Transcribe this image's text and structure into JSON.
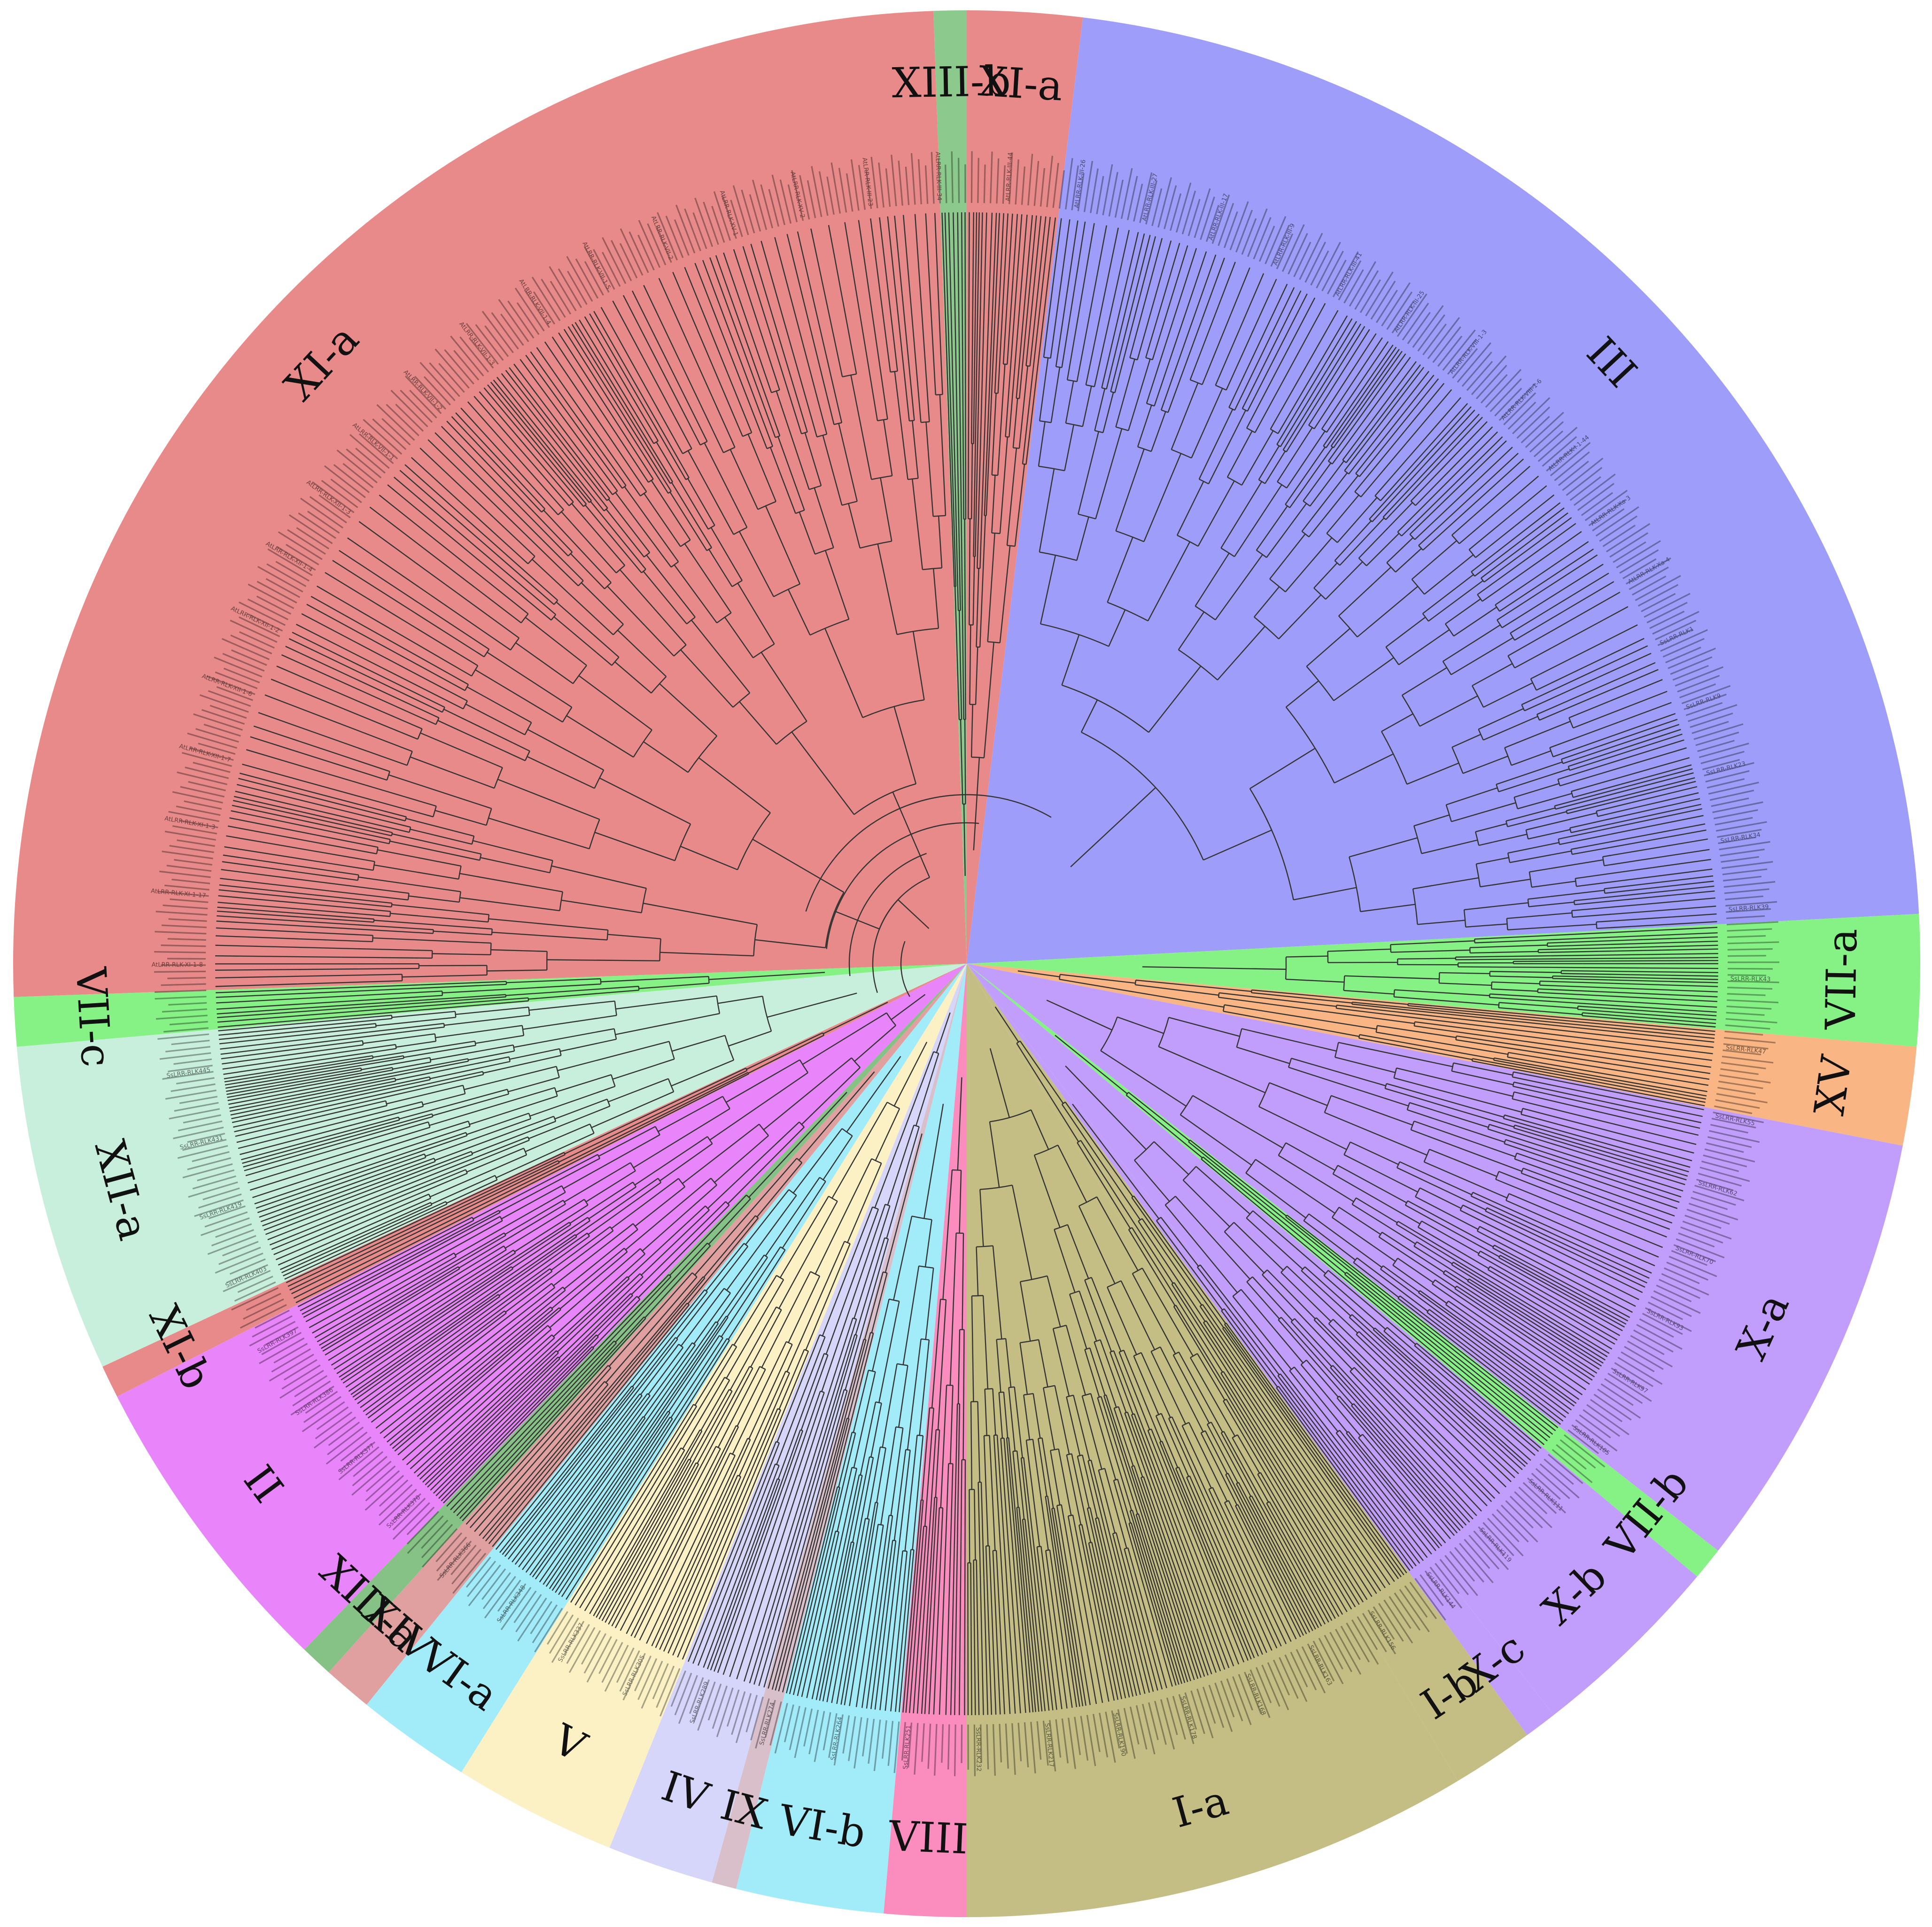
{
  "figure": {
    "type": "circular-phylogenetic-tree",
    "subject": "LRR-RLK gene family (At and Ss)"
  },
  "clades": [
    {
      "label": "XI-a",
      "color": "#E98A8A",
      "from": 178,
      "to": 268
    },
    {
      "label": "XIII-b",
      "color": "#8CC98C",
      "from": 268,
      "to": 270
    },
    {
      "label": "XI-a",
      "color": "#E98A8A",
      "from": 270,
      "to": 277
    },
    {
      "label": "III",
      "color": "#9E9EFA",
      "from": 277,
      "to": 357
    },
    {
      "label": "VII-a",
      "color": "#86F286",
      "from": 357,
      "to": 365
    },
    {
      "label": "XV",
      "color": "#F9B583",
      "from": 365,
      "to": 371
    },
    {
      "label": "X-a",
      "color": "#C19EFB",
      "from": 371,
      "to": 398
    },
    {
      "label": "VII-b",
      "color": "#86F286",
      "from": 398,
      "to": 400
    },
    {
      "label": "X-b",
      "color": "#C19EFB",
      "from": 400,
      "to": 412
    },
    {
      "label": "X-c",
      "color": "#C19EFB",
      "from": 412,
      "to": 414
    },
    {
      "label": "I-b",
      "color": "#C4BE84",
      "from": 414,
      "to": 419
    },
    {
      "label": "I-a",
      "color": "#C4BE84",
      "from": 419,
      "to": 450
    },
    {
      "label": "VIII",
      "color": "#FA8CBE",
      "from": 450,
      "to": 455
    },
    {
      "label": "VI-b",
      "color": "#A2EBF9",
      "from": 455,
      "to": 464
    },
    {
      "label": "IX",
      "color": "#D9BFC9",
      "from": 464,
      "to": 465.5
    },
    {
      "label": "IV",
      "color": "#D6D6FA",
      "from": 465.5,
      "to": 472
    },
    {
      "label": "V",
      "color": "#FBF1C5",
      "from": 472,
      "to": 482
    },
    {
      "label": "VI-a",
      "color": "#A2EBF9",
      "from": 482,
      "to": 489
    },
    {
      "label": "XIV",
      "color": "#E0A0A0",
      "from": 489,
      "to": 492
    },
    {
      "label": "XIII-a",
      "color": "#86C286",
      "from": 492,
      "to": 494
    },
    {
      "label": "II",
      "color": "#E985FA",
      "from": 494,
      "to": 513
    },
    {
      "label": "XI-b",
      "color": "#E98A8A",
      "from": 513,
      "to": 515
    },
    {
      "label": "XII-a",
      "color": "#C8EFDB",
      "from": 515,
      "to": 535
    },
    {
      "label": "VII-c",
      "color": "#86F286",
      "from": 535,
      "to": 538
    }
  ],
  "leaf_samples": {
    "At": [
      "AtLRR-RLK-XI-1-8",
      "AtLRR-RLK-XI-1-17",
      "AtLRR-RLK-XI-1-3",
      "AtLRR-RLK-XII-1-7",
      "AtLRR-RLK-XII-1-6",
      "AtLRR-RLK-XII-1-2",
      "AtLRR-RLK-XII-1-4",
      "AtLRR-RLK-XII-1-3",
      "AtLRR-RLK-VII-1-1",
      "AtLRR-RLK-VII-1-2",
      "AtLRR-RLK-VII-1-3",
      "AtLRR-RLK-VII-1-4",
      "AtLRR-RLK-VII-1-5",
      "AtLRR-RLK-VII-2",
      "AtLRR-RLK-XV-1",
      "AtLRR-RLK-XV-2",
      "AtLRR-RLK-III-23",
      "AtLRR-RLK-III-34",
      "AtLRR-RLK-III-44",
      "AtLRR-RLK-III-26",
      "AtLRR-RLK-III-27",
      "AtLRR-RLK-III-17",
      "AtLRR-RLK-III-9",
      "AtLRR-RLK-III-41",
      "AtLRR-RLK-III-25",
      "AtLRR-RLK-VIII-1-3",
      "AtLRR-RLK-VIII-1-6",
      "AtLRR-RLK-I-1-44",
      "AtLRR-RLK-Xa-3",
      "AtLRR-RLK-Xa-4"
    ],
    "Ss": [
      "SsLRR-RLK1",
      "SsLRR-RLK9",
      "SsLRR-RLK23",
      "SsLRR-RLK34",
      "SsLRR-RLK39",
      "SsLRR-RLK43",
      "SsLRR-RLK47",
      "SsLRR-RLK55",
      "SsLRR-RLK62",
      "SsLRR-RLK70",
      "SsLRR-RLK93",
      "SsLRR-RLK97",
      "SsLRR-RLK105",
      "SsLRR-RLK111",
      "SsLRR-RLK119",
      "SsLRR-RLK144",
      "SsLRR-RLK156",
      "SsLRR-RLK163",
      "SsLRR-RLK168",
      "SsLRR-RLK178",
      "SsLRR-RLK190",
      "SsLRR-RLK217",
      "SsLRR-RLK232",
      "SsLRR-RLK251",
      "SsLRR-RLK264",
      "SsLRR-RLK274",
      "SsLRR-RLK289",
      "SsLRR-RLK305",
      "SsLRR-RLK337",
      "SsLRR-RLK348",
      "SsLRR-RLK366",
      "SsLRR-RLK370",
      "SsLRR-RLK377",
      "SsLRR-RLK386",
      "SsLRR-RLK397",
      "SsLRR-RLK403",
      "SsLRR-RLK419",
      "SsLRR-RLK431",
      "SsLRR-RLK445"
    ]
  },
  "colors": {
    "branch": "#333333",
    "label": "#111111",
    "leaf_text": "#222222"
  }
}
